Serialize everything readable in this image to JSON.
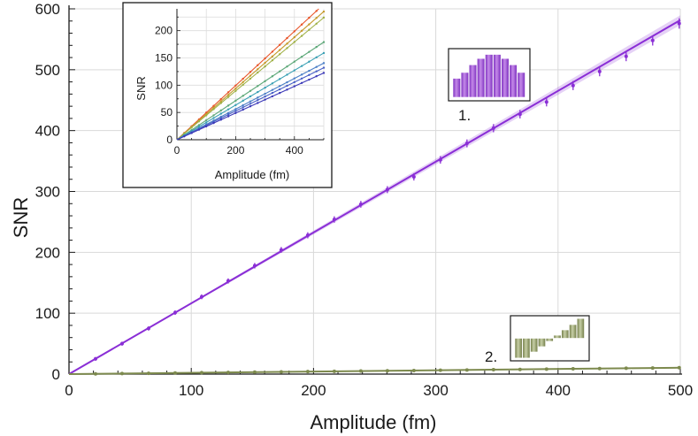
{
  "chart_data": [
    {
      "type": "line",
      "xlabel": "Amplitude (fm)",
      "ylabel": "SNR",
      "xlim": [
        0,
        500
      ],
      "ylim": [
        0,
        600
      ],
      "xticks": [
        0,
        100,
        200,
        300,
        400,
        500
      ],
      "yticks": [
        0,
        100,
        200,
        300,
        400,
        500,
        600
      ],
      "grid": true,
      "series": [
        {
          "color": "#8a2ed6",
          "fit_slope": 1.163,
          "x": [
            21.7,
            43.4,
            65.1,
            86.8,
            108.5,
            130.2,
            151.9,
            173.6,
            195.3,
            217,
            238.7,
            260.4,
            282.1,
            303.8,
            325.5,
            347.2,
            368.9,
            390.6,
            412.3,
            434,
            455.7,
            477.4,
            499.1
          ],
          "y": [
            25,
            50,
            75,
            101,
            127,
            153,
            178,
            204,
            228,
            254,
            279,
            303,
            324,
            352,
            379,
            404,
            427,
            447,
            474,
            497,
            522,
            548,
            576
          ]
        },
        {
          "color": "#7d8a4e",
          "fit_slope": 0.021,
          "x": [
            21.7,
            43.4,
            65.1,
            86.8,
            108.5,
            130.2,
            151.9,
            173.6,
            195.3,
            217,
            238.7,
            260.4,
            282.1,
            303.8,
            325.5,
            347.2,
            368.9,
            390.6,
            412.3,
            434,
            455.7,
            477.4,
            499.1
          ],
          "y": [
            0.4,
            0.9,
            1.3,
            1.8,
            2.3,
            2.7,
            3.2,
            3.6,
            4.1,
            4.5,
            5.0,
            5.5,
            5.9,
            6.4,
            6.8,
            7.3,
            7.7,
            8.2,
            8.7,
            9.1,
            9.6,
            10.0,
            10.5
          ]
        }
      ],
      "annotations": [
        {
          "label": "1.",
          "series": 0,
          "pattern_color": "#a45fd6",
          "bars": [
            0.42,
            0.55,
            0.72,
            0.86,
            0.95,
            0.95,
            0.86,
            0.72,
            0.55
          ]
        },
        {
          "label": "2.",
          "series": 1,
          "pattern_color": "#8b956a",
          "bars": [
            -0.52,
            -0.52,
            -0.36,
            -0.22,
            -0.08,
            0.08,
            0.22,
            0.36,
            0.52
          ]
        }
      ]
    },
    {
      "type": "line",
      "xlabel": "Amplitude (fm)",
      "ylabel": "SNR",
      "xlim": [
        0,
        500
      ],
      "ylim": [
        0,
        240
      ],
      "xticks": [
        0,
        200,
        400
      ],
      "yticks": [
        0,
        50,
        100,
        150,
        200
      ],
      "grid": true,
      "series": [
        {
          "color": "#e8552a",
          "slope": 0.497
        },
        {
          "color": "#c59a2c",
          "slope": 0.47
        },
        {
          "color": "#9fb146",
          "slope": 0.448
        },
        {
          "color": "#5fa97a",
          "slope": 0.358
        },
        {
          "color": "#3aa0b4",
          "slope": 0.318
        },
        {
          "color": "#4c7fc7",
          "slope": 0.281
        },
        {
          "color": "#4960c6",
          "slope": 0.264
        },
        {
          "color": "#3b38b8",
          "slope": 0.245
        }
      ]
    }
  ]
}
